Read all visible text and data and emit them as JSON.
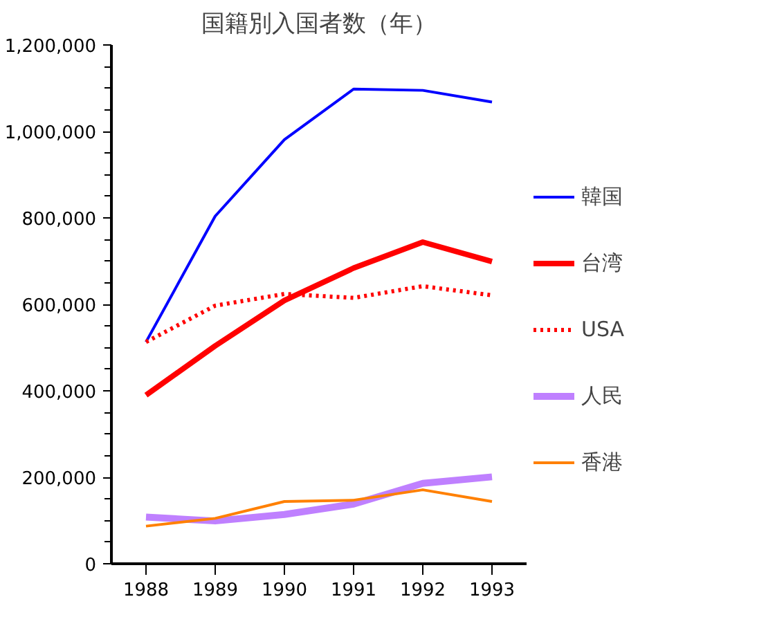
{
  "chart_data": {
    "type": "line",
    "title": "国籍別入国者数（年）",
    "x": [
      1988,
      1989,
      1990,
      1991,
      1992,
      1993
    ],
    "xlim": [
      1987.5,
      1993.5
    ],
    "xticks": [
      1988,
      1989,
      1990,
      1991,
      1992,
      1993
    ],
    "ylim": [
      0,
      1200000
    ],
    "yticks": [
      {
        "value": 0,
        "label": "0"
      },
      {
        "value": 200000,
        "label": "200,000"
      },
      {
        "value": 400000,
        "label": "400,000"
      },
      {
        "value": 600000,
        "label": "600,000"
      },
      {
        "value": 800000,
        "label": "800,000"
      },
      {
        "value": 1000000,
        "label": "1,000,000"
      },
      {
        "value": 1200000,
        "label": "1,200,000"
      }
    ],
    "grid": false,
    "legend": "right",
    "series": [
      {
        "name": "韓国",
        "color": "#0000ff",
        "line_style": "solid",
        "values": [
          513000,
          804000,
          981000,
          1098000,
          1095000,
          1068000
        ]
      },
      {
        "name": "台湾",
        "color": "#ff0000",
        "line_style": "solid",
        "values": [
          390000,
          504000,
          609000,
          684000,
          744000,
          699000
        ]
      },
      {
        "name": "USA",
        "color": "#ff0000",
        "line_style": "dotted",
        "values": [
          513000,
          597000,
          624000,
          615000,
          642000,
          621000
        ]
      },
      {
        "name": "人民",
        "color": "#bf80ff",
        "line_style": "solid",
        "values": [
          108000,
          99000,
          114000,
          138000,
          186000,
          201000
        ]
      },
      {
        "name": "香港",
        "color": "#ff8000",
        "line_style": "solid",
        "values": [
          87000,
          105000,
          144000,
          147000,
          171000,
          144000
        ]
      }
    ]
  }
}
